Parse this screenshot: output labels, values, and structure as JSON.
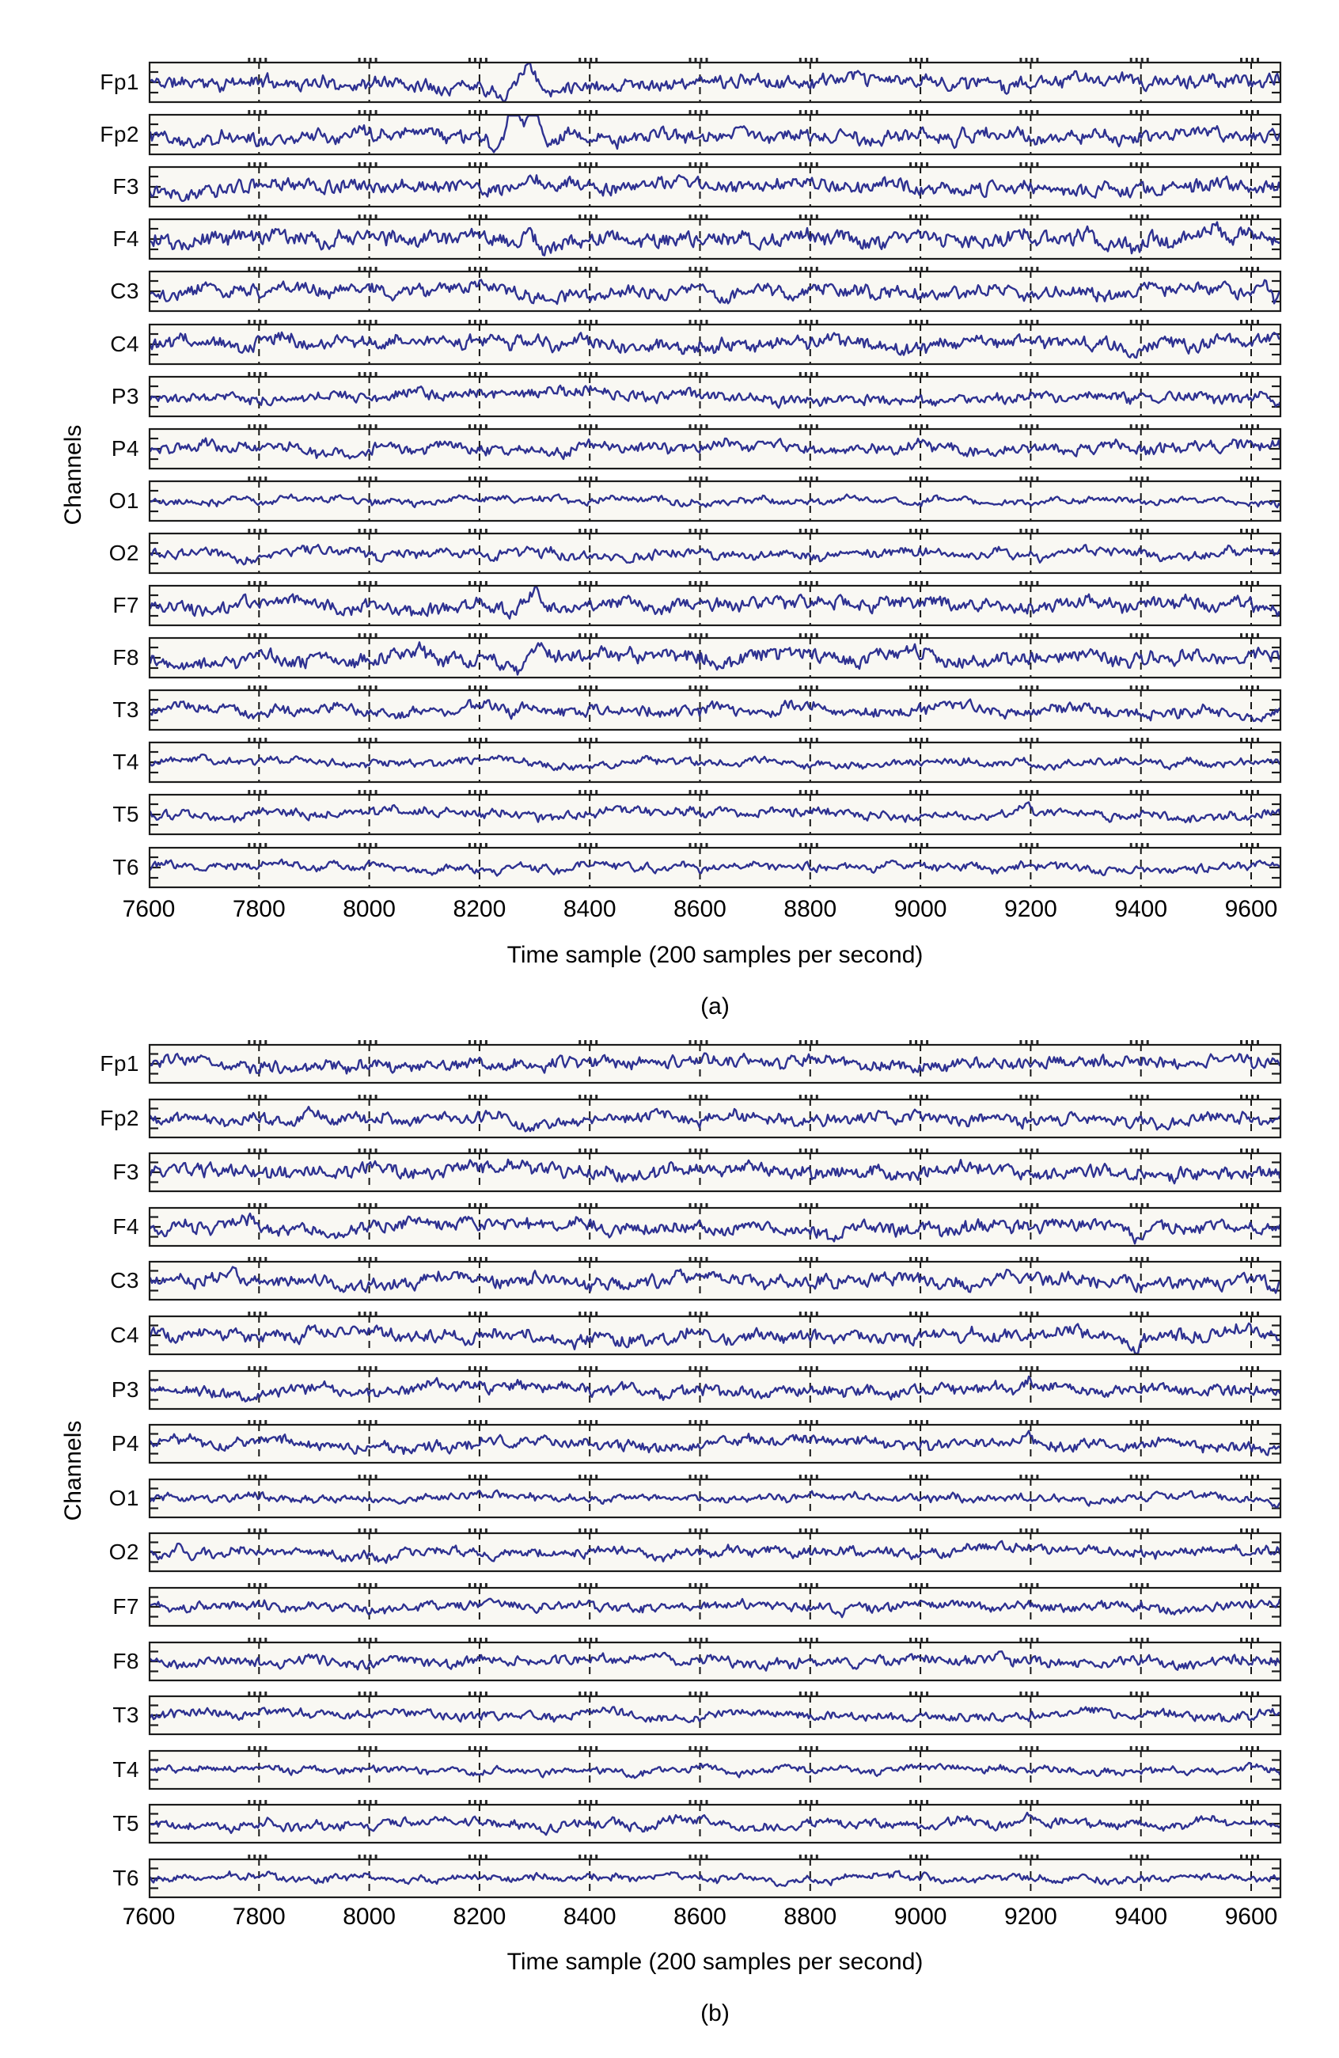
{
  "figure": {
    "description": "Sixteen-channel EEG traces in two stacked panels",
    "trace_color": "#2e3191",
    "plot_bg": "#f9f8f3",
    "frame_color": "#1b1b1b"
  },
  "chart_data": {
    "type": "line",
    "x_axis": {
      "label": "Time sample (200 samples per second)",
      "range": [
        7600,
        9655
      ],
      "ticks": [
        7600,
        7800,
        8000,
        8200,
        8400,
        8600,
        8800,
        9000,
        9200,
        9400,
        9600
      ]
    },
    "panels": [
      {
        "caption": "(a)",
        "xlabel": "Time sample (200 samples per second)",
        "ylabel": "Channels",
        "x_ticks": [
          "7600",
          "7800",
          "8000",
          "8200",
          "8400",
          "8600",
          "8800",
          "9000",
          "9200",
          "9400",
          "9600"
        ],
        "channels": [
          {
            "label": "Fp1",
            "seed": 11,
            "amp": 8,
            "hf": 0.5,
            "events": [
              {
                "x": 8285,
                "a": 28,
                "w": 9
              },
              {
                "x": 8240,
                "a": -8,
                "w": 10
              },
              {
                "x": 8332,
                "a": -10,
                "w": 11
              }
            ]
          },
          {
            "label": "Fp2",
            "seed": 12,
            "amp": 8,
            "hf": 0.48,
            "events": [
              {
                "x": 8262,
                "a": 46,
                "w": 6
              },
              {
                "x": 8298,
                "a": 42,
                "w": 6
              },
              {
                "x": 8232,
                "a": -18,
                "w": 9
              },
              {
                "x": 8336,
                "a": -20,
                "w": 9
              }
            ]
          },
          {
            "label": "F3",
            "seed": 13,
            "amp": 8,
            "hf": 0.5,
            "events": [
              {
                "x": 8295,
                "a": 11,
                "w": 10
              }
            ]
          },
          {
            "label": "F4",
            "seed": 14,
            "amp": 9,
            "hf": 0.5,
            "events": [
              {
                "x": 8288,
                "a": 24,
                "w": 6
              },
              {
                "x": 8315,
                "a": -8,
                "w": 8
              },
              {
                "x": 9395,
                "a": -10,
                "w": 6
              }
            ]
          },
          {
            "label": "C3",
            "seed": 15,
            "amp": 8,
            "hf": 0.48,
            "events": [
              {
                "x": 8640,
                "a": -8,
                "w": 7
              },
              {
                "x": 9620,
                "a": 12,
                "w": 5
              },
              {
                "x": 9642,
                "a": -12,
                "w": 5
              }
            ]
          },
          {
            "label": "C4",
            "seed": 16,
            "amp": 8,
            "hf": 0.48,
            "events": [
              {
                "x": 8300,
                "a": 7,
                "w": 8
              },
              {
                "x": 9390,
                "a": -11,
                "w": 5
              }
            ]
          },
          {
            "label": "P3",
            "seed": 17,
            "amp": 7,
            "hf": 0.45,
            "events": [
              {
                "x": 9622,
                "a": 9,
                "w": 6
              },
              {
                "x": 9642,
                "a": -8,
                "w": 5
              }
            ]
          },
          {
            "label": "P4",
            "seed": 18,
            "amp": 7,
            "hf": 0.45,
            "events": [
              {
                "x": 9200,
                "a": 6,
                "w": 6
              }
            ]
          },
          {
            "label": "O1",
            "seed": 19,
            "amp": 4.5,
            "hf": 0.42,
            "events": []
          },
          {
            "label": "O2",
            "seed": 20,
            "amp": 6,
            "hf": 0.42,
            "events": []
          },
          {
            "label": "F7",
            "seed": 21,
            "amp": 8,
            "hf": 0.5,
            "events": [
              {
                "x": 8262,
                "a": -13,
                "w": 8
              },
              {
                "x": 8300,
                "a": 17,
                "w": 8
              }
            ]
          },
          {
            "label": "F8",
            "seed": 22,
            "amp": 9,
            "hf": 0.5,
            "events": [
              {
                "x": 8270,
                "a": -9,
                "w": 7
              },
              {
                "x": 8305,
                "a": 26,
                "w": 6
              },
              {
                "x": 8090,
                "a": 7,
                "w": 6
              }
            ]
          },
          {
            "label": "T3",
            "seed": 23,
            "amp": 7,
            "hf": 0.45,
            "events": [
              {
                "x": 8410,
                "a": 6,
                "w": 7
              }
            ]
          },
          {
            "label": "T4",
            "seed": 24,
            "amp": 5,
            "hf": 0.42,
            "events": []
          },
          {
            "label": "T5",
            "seed": 25,
            "amp": 6,
            "hf": 0.42,
            "events": [
              {
                "x": 9195,
                "a": 11,
                "w": 5
              },
              {
                "x": 9212,
                "a": -7,
                "w": 5
              }
            ]
          },
          {
            "label": "T6",
            "seed": 26,
            "amp": 5,
            "hf": 0.42,
            "events": []
          }
        ]
      },
      {
        "caption": "(b)",
        "xlabel": "Time sample (200 samples per second)",
        "ylabel": "Channels",
        "x_ticks": [
          "7600",
          "7800",
          "8000",
          "8200",
          "8400",
          "8600",
          "8800",
          "9000",
          "9200",
          "9400",
          "9600"
        ],
        "channels": [
          {
            "label": "Fp1",
            "seed": 31,
            "amp": 7,
            "hf": 0.5,
            "events": []
          },
          {
            "label": "Fp2",
            "seed": 32,
            "amp": 7,
            "hf": 0.48,
            "events": []
          },
          {
            "label": "F3",
            "seed": 33,
            "amp": 8,
            "hf": 0.5,
            "events": []
          },
          {
            "label": "F4",
            "seed": 34,
            "amp": 8,
            "hf": 0.5,
            "events": [
              {
                "x": 9395,
                "a": -9,
                "w": 6
              }
            ]
          },
          {
            "label": "C3",
            "seed": 35,
            "amp": 8,
            "hf": 0.48,
            "events": [
              {
                "x": 9620,
                "a": 11,
                "w": 5
              },
              {
                "x": 9642,
                "a": -10,
                "w": 5
              }
            ]
          },
          {
            "label": "C4",
            "seed": 36,
            "amp": 8,
            "hf": 0.48,
            "events": [
              {
                "x": 9390,
                "a": -11,
                "w": 5
              }
            ]
          },
          {
            "label": "P3",
            "seed": 37,
            "amp": 7,
            "hf": 0.45,
            "events": [
              {
                "x": 9198,
                "a": 13,
                "w": 5
              },
              {
                "x": 9214,
                "a": -6,
                "w": 5
              }
            ]
          },
          {
            "label": "P4",
            "seed": 38,
            "amp": 7,
            "hf": 0.45,
            "events": [
              {
                "x": 9195,
                "a": 10,
                "w": 5
              }
            ]
          },
          {
            "label": "O1",
            "seed": 39,
            "amp": 4.5,
            "hf": 0.42,
            "events": []
          },
          {
            "label": "O2",
            "seed": 40,
            "amp": 6,
            "hf": 0.42,
            "events": [
              {
                "x": 9200,
                "a": 6,
                "w": 5
              }
            ]
          },
          {
            "label": "F7",
            "seed": 41,
            "amp": 5.5,
            "hf": 0.5,
            "events": []
          },
          {
            "label": "F8",
            "seed": 42,
            "amp": 6,
            "hf": 0.5,
            "events": [
              {
                "x": 8200,
                "a": 6,
                "w": 6
              }
            ]
          },
          {
            "label": "T3",
            "seed": 43,
            "amp": 6,
            "hf": 0.45,
            "events": []
          },
          {
            "label": "T4",
            "seed": 44,
            "amp": 4.5,
            "hf": 0.42,
            "events": []
          },
          {
            "label": "T5",
            "seed": 45,
            "amp": 6,
            "hf": 0.42,
            "events": [
              {
                "x": 9195,
                "a": 11,
                "w": 5
              }
            ]
          },
          {
            "label": "T6",
            "seed": 46,
            "amp": 4.5,
            "hf": 0.42,
            "events": []
          }
        ]
      }
    ]
  }
}
